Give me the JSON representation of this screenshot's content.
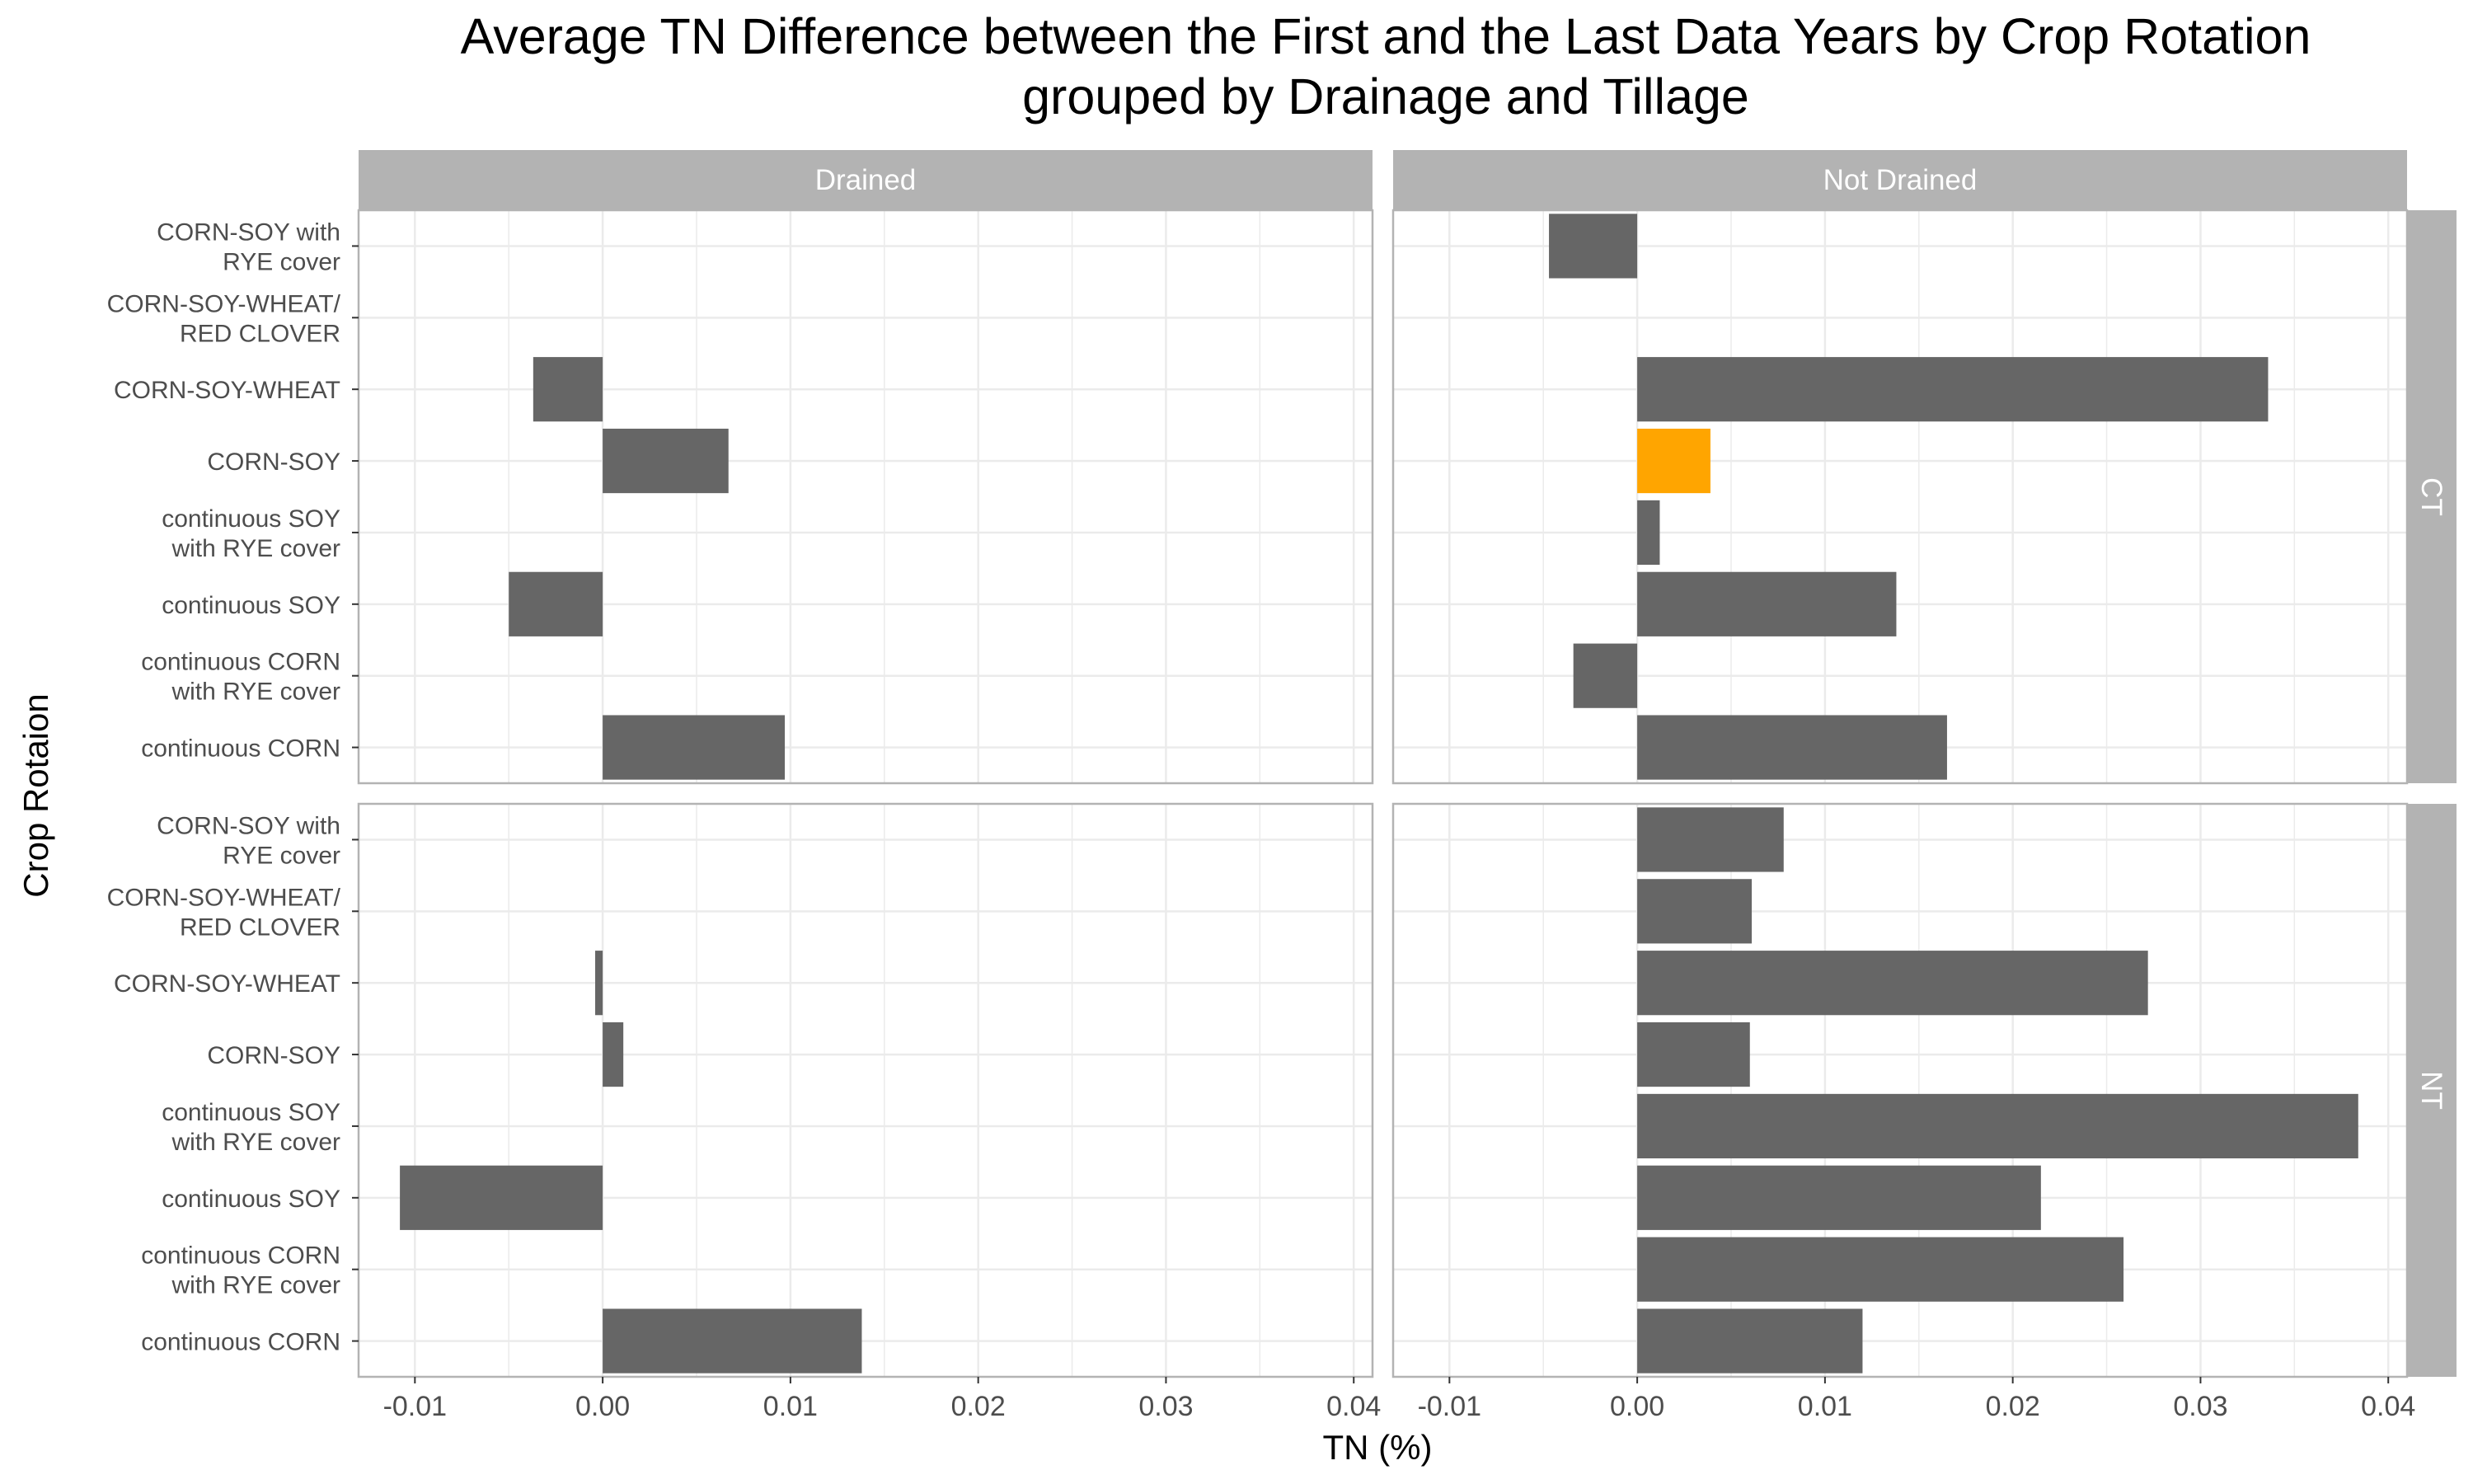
{
  "chart_data": {
    "type": "bar",
    "orientation": "horizontal",
    "title_lines": [
      "Average TN Difference between the First and the Last Data Years by Crop Rotation",
      "grouped by Drainage and Tillage"
    ],
    "xlabel": "TN (%)",
    "ylabel": "Crop Rotaion",
    "xlim": [
      -0.013,
      0.041
    ],
    "x_ticks": [
      "-0.01",
      "0.00",
      "0.01",
      "0.02",
      "0.03",
      "0.04"
    ],
    "grid": true,
    "facet_columns": [
      "Drained",
      "Not Drained"
    ],
    "facet_rows": [
      "CT",
      "NT"
    ],
    "categories": [
      [
        "CORN-SOY with",
        "RYE cover"
      ],
      [
        "CORN-SOY-WHEAT/",
        "RED CLOVER"
      ],
      [
        "CORN-SOY-WHEAT"
      ],
      [
        "CORN-SOY"
      ],
      [
        "continuous SOY",
        "with RYE cover"
      ],
      [
        "continuous SOY"
      ],
      [
        "continuous CORN",
        "with RYE cover"
      ],
      [
        "continuous CORN"
      ]
    ],
    "colors": {
      "bar": "#666666",
      "highlight": "#ffa500",
      "strip": "#b3b3b3",
      "grid": "#ebebeb",
      "panel_border": "#b3b3b3"
    },
    "panels": [
      {
        "row": "CT",
        "col": "Drained",
        "values": [
          null,
          null,
          -0.0037,
          0.0067,
          null,
          -0.005,
          null,
          0.0097
        ],
        "highlight_index": null
      },
      {
        "row": "CT",
        "col": "Not Drained",
        "values": [
          -0.0047,
          null,
          0.0336,
          0.0039,
          0.0012,
          0.0138,
          -0.0034,
          0.0165
        ],
        "highlight_index": 3
      },
      {
        "row": "NT",
        "col": "Drained",
        "values": [
          null,
          null,
          -0.0004,
          0.0011,
          null,
          -0.0108,
          null,
          0.0138
        ],
        "highlight_index": null
      },
      {
        "row": "NT",
        "col": "Not Drained",
        "values": [
          0.0078,
          0.0061,
          0.0272,
          0.006,
          0.0384,
          0.0215,
          0.0259,
          0.012
        ],
        "highlight_index": null
      }
    ]
  }
}
